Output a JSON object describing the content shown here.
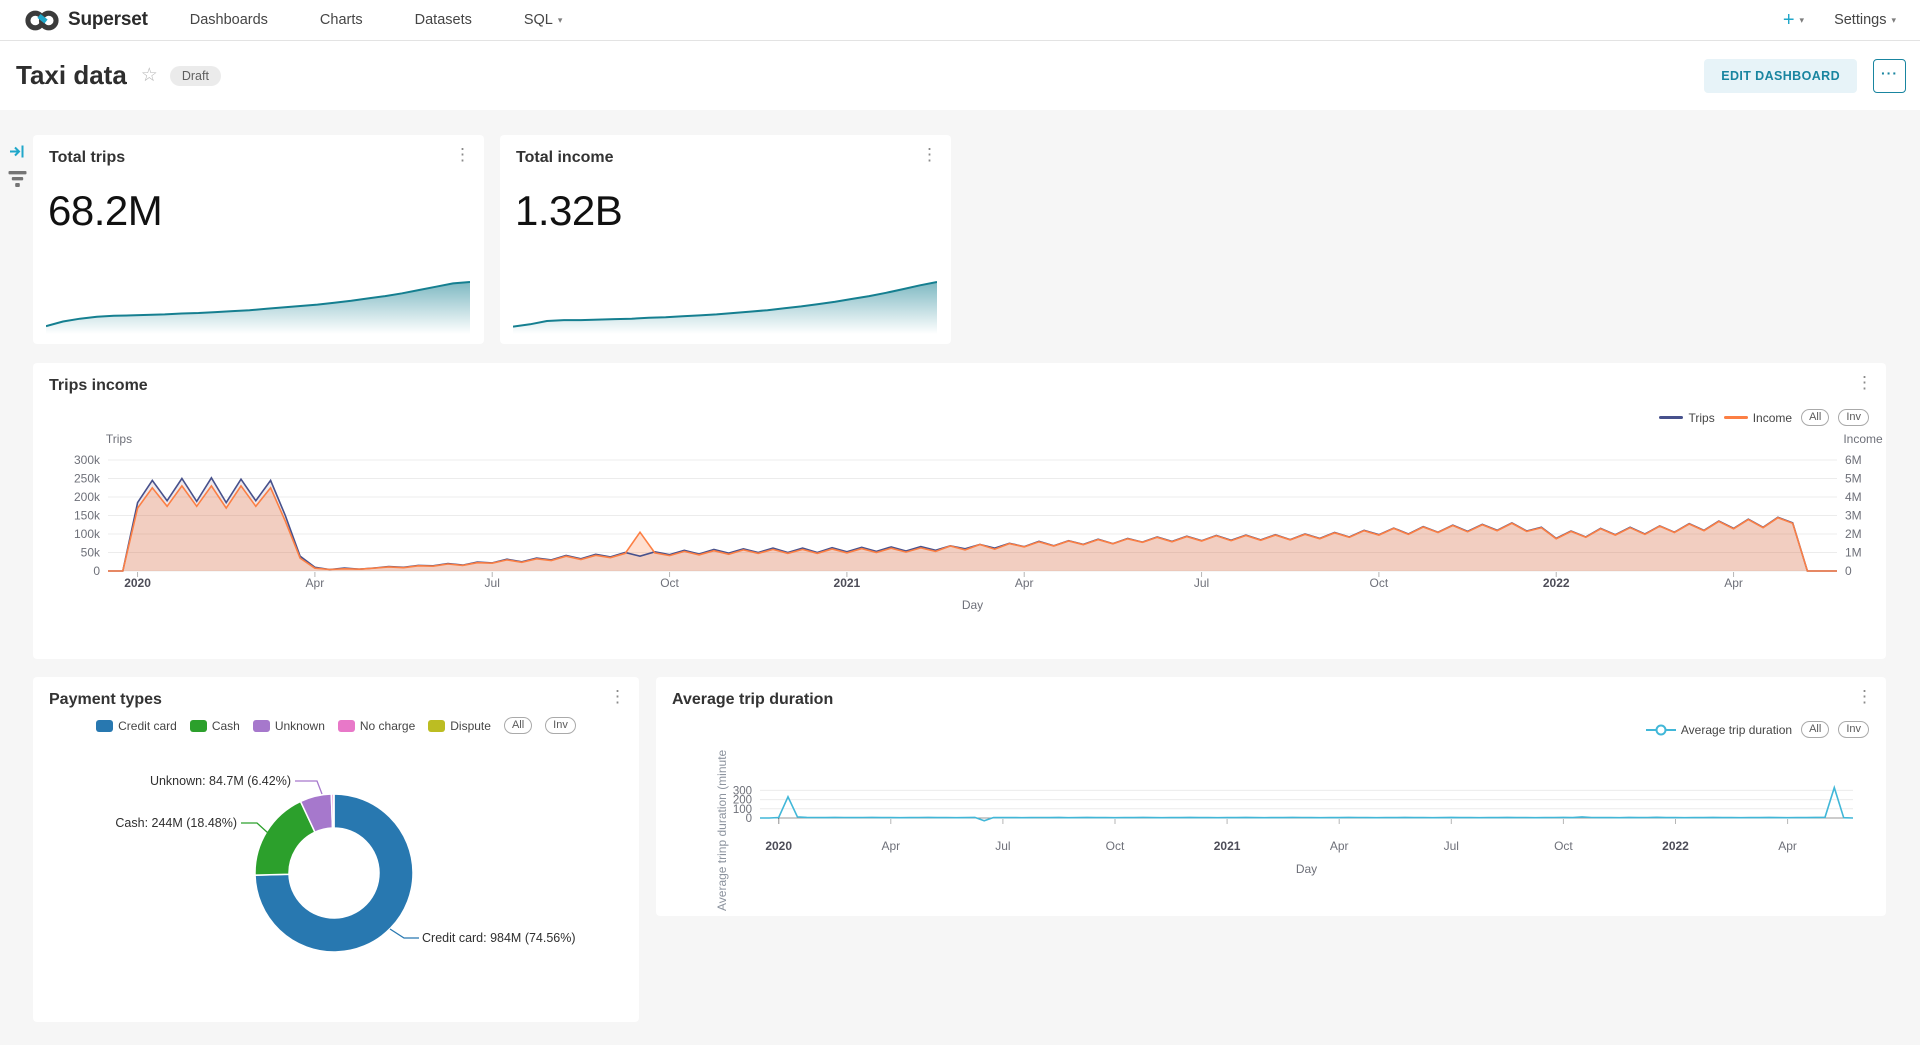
{
  "navbar": {
    "brand": "Superset",
    "items": [
      {
        "label": "Dashboards"
      },
      {
        "label": "Charts"
      },
      {
        "label": "Datasets"
      },
      {
        "label": "SQL"
      }
    ],
    "plus_label": "+",
    "settings_label": "Settings"
  },
  "header": {
    "title": "Taxi data",
    "draft_label": "Draft",
    "edit_button_label": "EDIT DASHBOARD",
    "more_label": "···"
  },
  "icons": {
    "kebab": "⋮",
    "star": "☆",
    "caret": "▾"
  },
  "pills": {
    "all": "All",
    "inv": "Inv"
  },
  "colors": {
    "brand": "#20a7c9",
    "spark": "#157f90",
    "trips_line": "#47518c",
    "income_line": "#fc7f44",
    "duration_line": "#41b7d8",
    "grid": "#ececec",
    "tick_text": "#6e7079"
  },
  "chart_data": [
    {
      "id": "total_trips",
      "type": "area",
      "title": "Total trips",
      "value": "68.2M",
      "color": "#157f90",
      "values": [
        0.06,
        0.16,
        0.22,
        0.26,
        0.28,
        0.29,
        0.3,
        0.31,
        0.33,
        0.34,
        0.36,
        0.38,
        0.4,
        0.43,
        0.46,
        0.49,
        0.52,
        0.56,
        0.6,
        0.65,
        0.7,
        0.76,
        0.83,
        0.9,
        0.97,
        1.0
      ]
    },
    {
      "id": "total_income",
      "type": "area",
      "title": "Total income",
      "value": "1.32B",
      "color": "#157f90",
      "values": [
        0.05,
        0.1,
        0.17,
        0.19,
        0.19,
        0.2,
        0.21,
        0.22,
        0.24,
        0.25,
        0.27,
        0.29,
        0.31,
        0.34,
        0.37,
        0.4,
        0.44,
        0.48,
        0.53,
        0.58,
        0.64,
        0.7,
        0.77,
        0.85,
        0.93,
        1.0
      ]
    },
    {
      "id": "trips_income",
      "type": "line",
      "title": "Trips income",
      "xlabel": "Day",
      "x_ticks": [
        "2020",
        "Apr",
        "Jul",
        "Oct",
        "2021",
        "Apr",
        "Jul",
        "Oct",
        "2022",
        "Apr"
      ],
      "x_tick_months": [
        0,
        3,
        6,
        9,
        12,
        15,
        18,
        21,
        24,
        27
      ],
      "y_left": {
        "title": "Trips",
        "ticks": [
          "300k",
          "250k",
          "200k",
          "150k",
          "100k",
          "50k",
          "0"
        ],
        "max": 300
      },
      "y_right": {
        "title": "Income",
        "ticks": [
          "6M",
          "5M",
          "4M",
          "3M",
          "2M",
          "1M",
          "0"
        ],
        "max": 6
      },
      "series": [
        {
          "name": "Trips",
          "color": "#47518c",
          "unit": "thousand trips/day",
          "values": [
            0,
            0,
            185,
            245,
            190,
            250,
            188,
            252,
            185,
            248,
            190,
            245,
            150,
            40,
            10,
            4,
            8,
            5,
            8,
            12,
            10,
            15,
            14,
            20,
            16,
            24,
            22,
            32,
            25,
            35,
            30,
            42,
            33,
            45,
            38,
            50,
            40,
            52,
            44,
            56,
            46,
            58,
            48,
            60,
            50,
            62,
            50,
            62,
            50,
            63,
            52,
            64,
            53,
            65,
            54,
            66,
            56,
            68,
            60,
            72,
            62,
            75,
            66,
            80,
            68,
            82,
            72,
            86,
            74,
            88,
            78,
            92,
            80,
            94,
            82,
            96,
            83,
            97,
            84,
            98,
            85,
            100,
            88,
            104,
            92,
            110,
            98,
            116,
            100,
            120,
            105,
            124,
            107,
            126,
            110,
            130,
            108,
            118,
            88,
            108,
            92,
            115,
            98,
            118,
            100,
            122,
            105,
            128,
            110,
            135,
            115,
            140,
            118,
            145,
            130,
            0,
            0,
            0
          ]
        },
        {
          "name": "Income",
          "color": "#fc7f44",
          "unit": "million/day",
          "values": [
            0,
            0,
            3.4,
            4.5,
            3.5,
            4.6,
            3.5,
            4.6,
            3.4,
            4.6,
            3.5,
            4.5,
            2.7,
            0.7,
            0.15,
            0.08,
            0.12,
            0.1,
            0.15,
            0.22,
            0.18,
            0.28,
            0.26,
            0.38,
            0.3,
            0.45,
            0.42,
            0.6,
            0.47,
            0.66,
            0.57,
            0.8,
            0.62,
            0.85,
            0.72,
            0.95,
            2.1,
            0.98,
            0.83,
            1.06,
            0.87,
            1.1,
            0.9,
            1.14,
            0.95,
            1.17,
            0.95,
            1.17,
            0.95,
            1.19,
            0.98,
            1.21,
            1.0,
            1.23,
            1.02,
            1.25,
            1.06,
            1.35,
            1.14,
            1.43,
            1.18,
            1.48,
            1.3,
            1.58,
            1.35,
            1.62,
            1.42,
            1.7,
            1.47,
            1.74,
            1.55,
            1.82,
            1.58,
            1.86,
            1.62,
            1.9,
            1.64,
            1.92,
            1.66,
            1.94,
            1.68,
            1.98,
            1.74,
            2.06,
            1.82,
            2.18,
            1.94,
            2.3,
            1.98,
            2.38,
            2.08,
            2.46,
            2.12,
            2.5,
            2.18,
            2.58,
            2.14,
            2.34,
            1.74,
            2.14,
            1.82,
            2.28,
            1.94,
            2.34,
            1.98,
            2.42,
            2.08,
            2.54,
            2.18,
            2.68,
            2.28,
            2.78,
            2.34,
            2.88,
            2.58,
            0,
            0,
            0
          ]
        }
      ]
    },
    {
      "id": "payment_types",
      "type": "donut",
      "title": "Payment types",
      "slices": [
        {
          "label": "Credit card",
          "value": "984M",
          "pct": 74.56,
          "color": "#2878b0"
        },
        {
          "label": "Cash",
          "value": "244M",
          "pct": 18.48,
          "color": "#2ca02c"
        },
        {
          "label": "Unknown",
          "value": "84.7M",
          "pct": 6.42,
          "color": "#a678cc"
        },
        {
          "label": "No charge",
          "pct": 0.45,
          "color": "#e878c8"
        },
        {
          "label": "Dispute",
          "pct": 0.09,
          "color": "#bcbd22"
        }
      ]
    },
    {
      "id": "avg_trip_duration",
      "type": "line",
      "title": "Average trip duration",
      "xlabel": "Day",
      "ylabel": "Average trinp duration (minute",
      "x_ticks": [
        "2020",
        "Apr",
        "Jul",
        "Oct",
        "2021",
        "Apr",
        "Jul",
        "Oct",
        "2022",
        "Apr"
      ],
      "x_tick_months": [
        0,
        3,
        6,
        9,
        12,
        15,
        18,
        21,
        24,
        27
      ],
      "y_ticks": [
        300,
        200,
        100,
        0
      ],
      "ylim": [
        -50,
        360
      ],
      "series": [
        {
          "name": "Average trip duration",
          "color": "#41b7d8",
          "unit": "minute",
          "values": [
            0,
            0,
            5,
            230,
            12,
            6,
            5,
            4,
            6,
            5,
            4,
            5,
            6,
            4,
            5,
            3,
            4,
            5,
            6,
            4,
            5,
            3,
            4,
            6,
            -30,
            5,
            4,
            5,
            3,
            4,
            5,
            4,
            6,
            3,
            4,
            6,
            4,
            5,
            3,
            5,
            4,
            6,
            4,
            3,
            5,
            4,
            6,
            4,
            5,
            3,
            5,
            4,
            6,
            4,
            3,
            5,
            4,
            6,
            5,
            4,
            3,
            5,
            4,
            6,
            5,
            4,
            3,
            5,
            4,
            6,
            4,
            5,
            3,
            4,
            6,
            4,
            5,
            3,
            5,
            4,
            6,
            4,
            5,
            3,
            4,
            5,
            6,
            4,
            12,
            5,
            4,
            5,
            3,
            6,
            4,
            5,
            8,
            4,
            5,
            3,
            5,
            4,
            6,
            4,
            5,
            3,
            5,
            4,
            6,
            4,
            3,
            5,
            4,
            6,
            8,
            330,
            3,
            0
          ]
        }
      ]
    }
  ]
}
